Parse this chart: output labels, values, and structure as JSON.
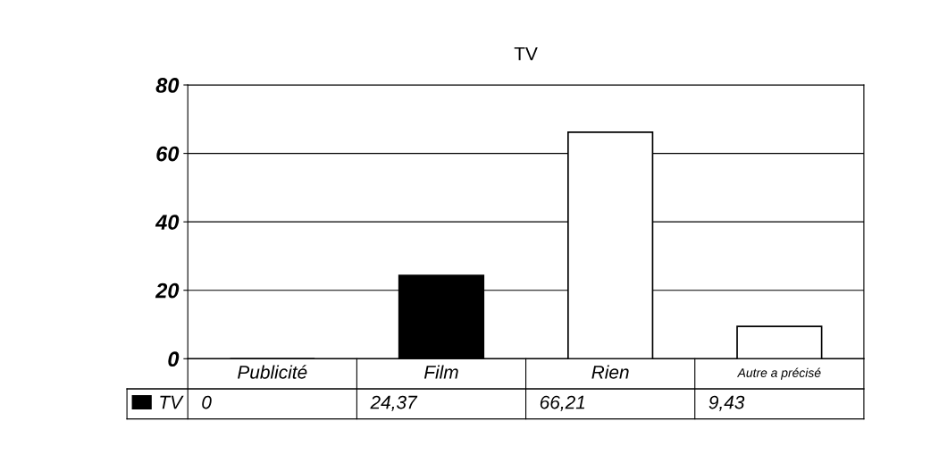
{
  "chart_data": {
    "type": "bar",
    "title": "TV",
    "categories": [
      "Publicité",
      "Film",
      "Rien",
      "Autre a précisé"
    ],
    "series": [
      {
        "name": "TV",
        "color": "#000000",
        "colors": [
          "#000000",
          "#000000",
          "#ffffff",
          "#ffffff"
        ],
        "values": [
          0,
          24.37,
          66.21,
          9.43
        ],
        "value_labels": [
          "0",
          "24,37",
          "66,21",
          "9,43"
        ]
      }
    ],
    "ylim": [
      0,
      80
    ],
    "yticks": [
      0,
      20,
      40,
      60,
      80
    ],
    "grid": "y",
    "legend": "bottom left"
  }
}
